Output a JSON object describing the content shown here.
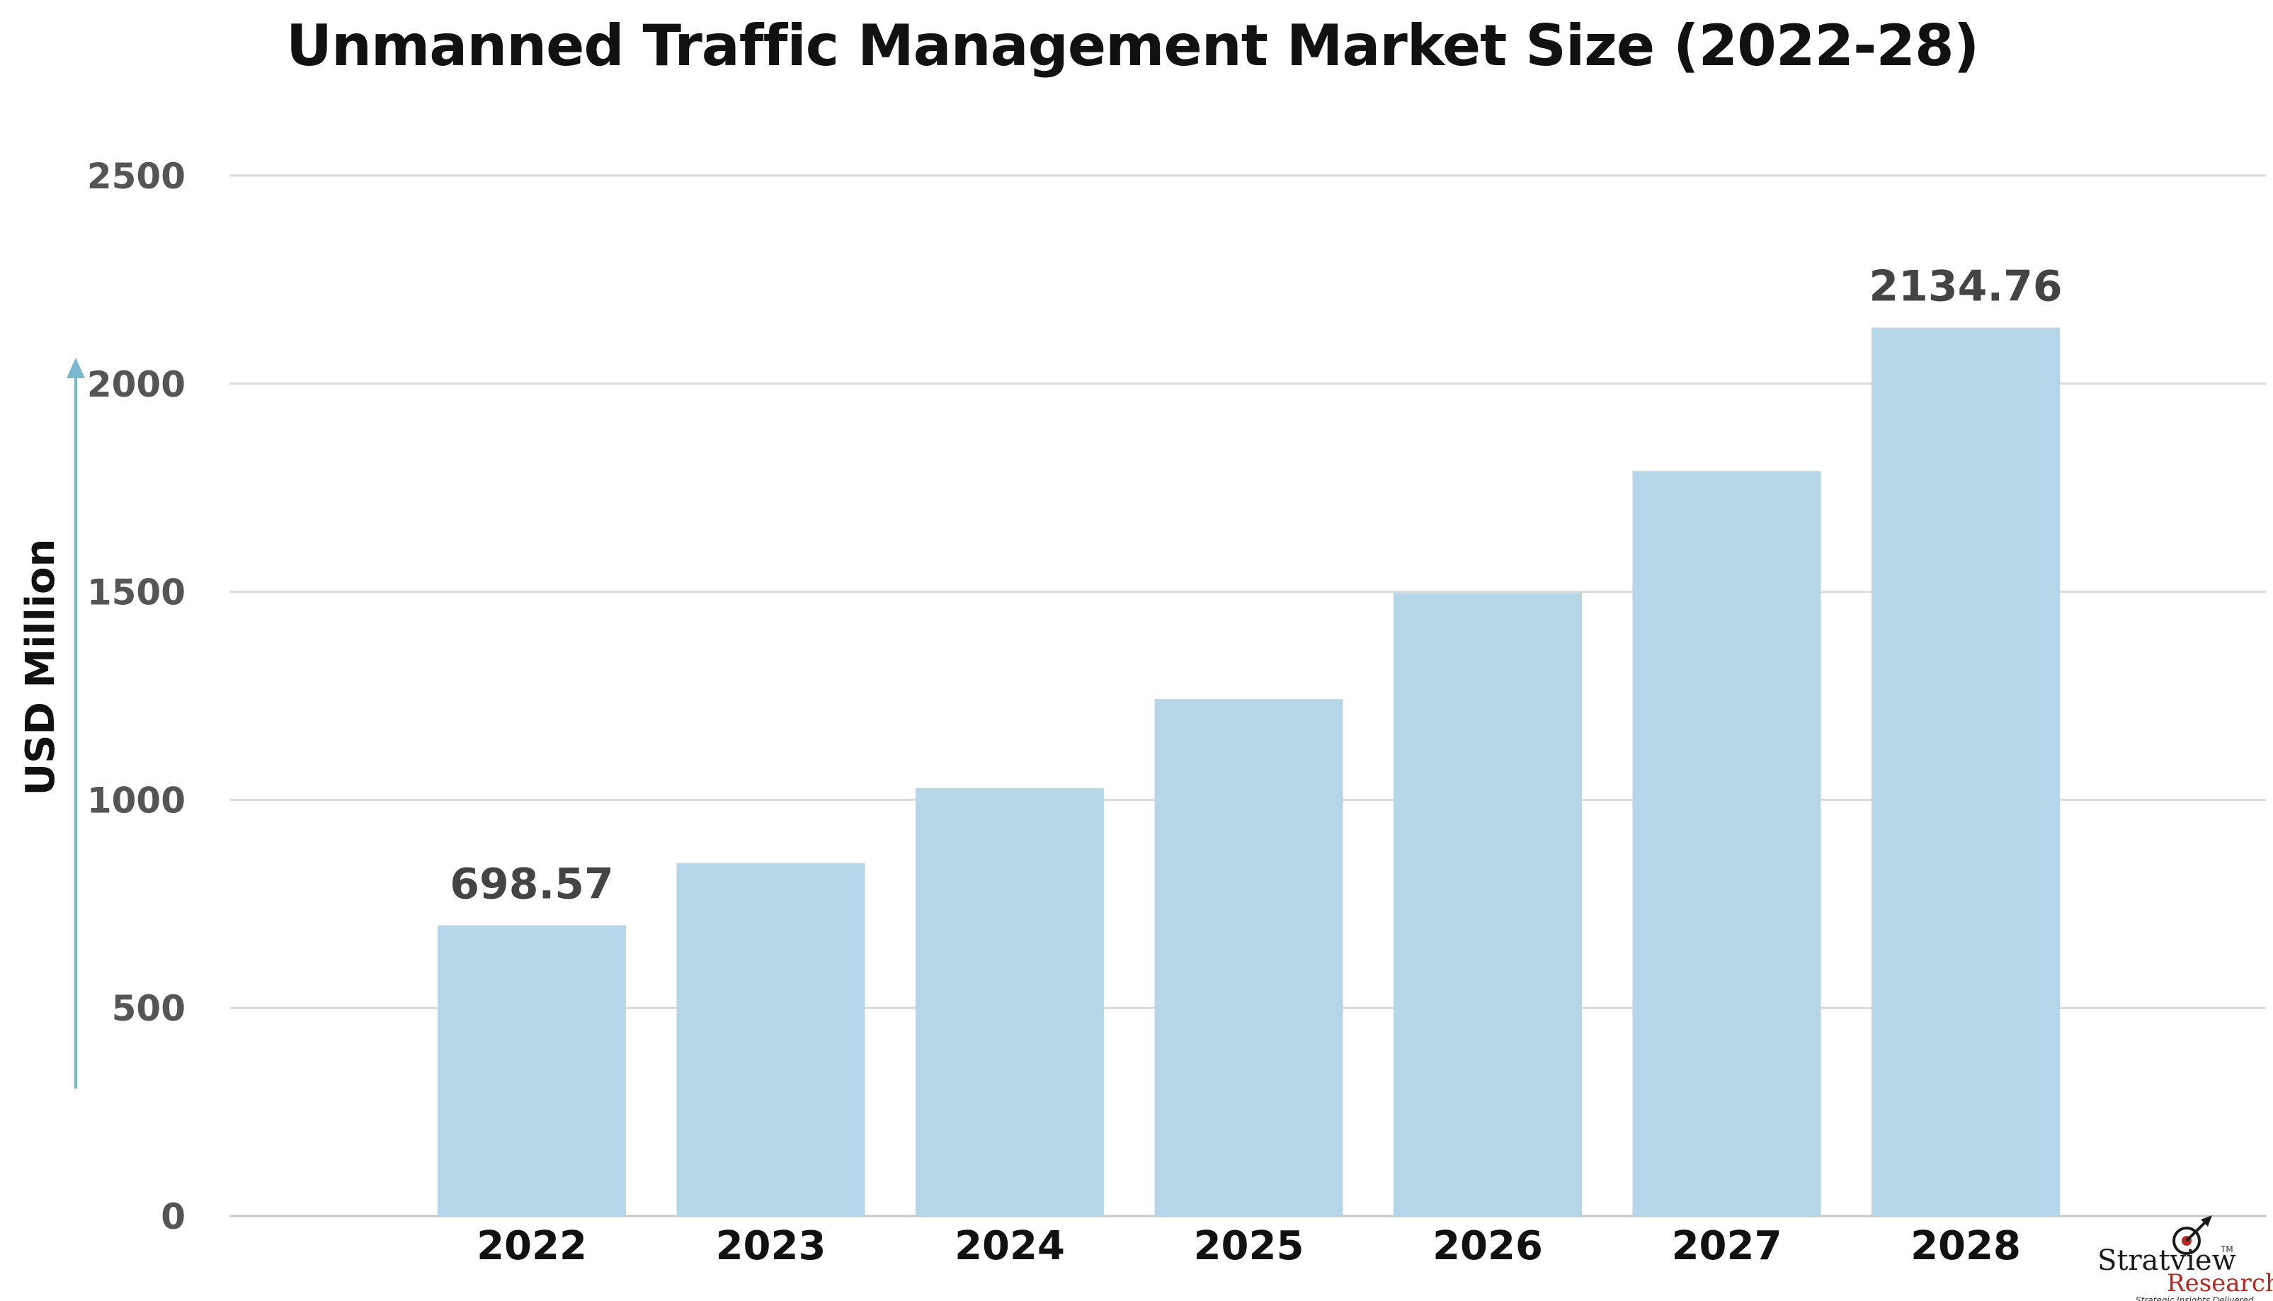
{
  "chart_data": {
    "type": "bar",
    "title": "Unmanned Traffic Management Market Size (2022-28)",
    "ylabel": "USD Million",
    "xlabel": "",
    "categories": [
      "2022",
      "2023",
      "2024",
      "2025",
      "2026",
      "2027",
      "2028"
    ],
    "values": [
      698.57,
      848,
      1028,
      1242,
      1497,
      1790,
      2134.76
    ],
    "data_labels": [
      {
        "index": 0,
        "text": "698.57"
      },
      {
        "index": 6,
        "text": "2134.76"
      }
    ],
    "ylim": [
      0,
      2500
    ],
    "yticks": [
      0,
      500,
      1000,
      1500,
      2000,
      2500
    ],
    "grid": true,
    "legend": "none",
    "bar_color": "#b5d6e6",
    "axis_arrow_color": "#7ab8cc"
  },
  "brand": {
    "name": "Stratview",
    "sub": "Research",
    "tagline": "Strategic Insights Delivered",
    "tm": "TM"
  }
}
